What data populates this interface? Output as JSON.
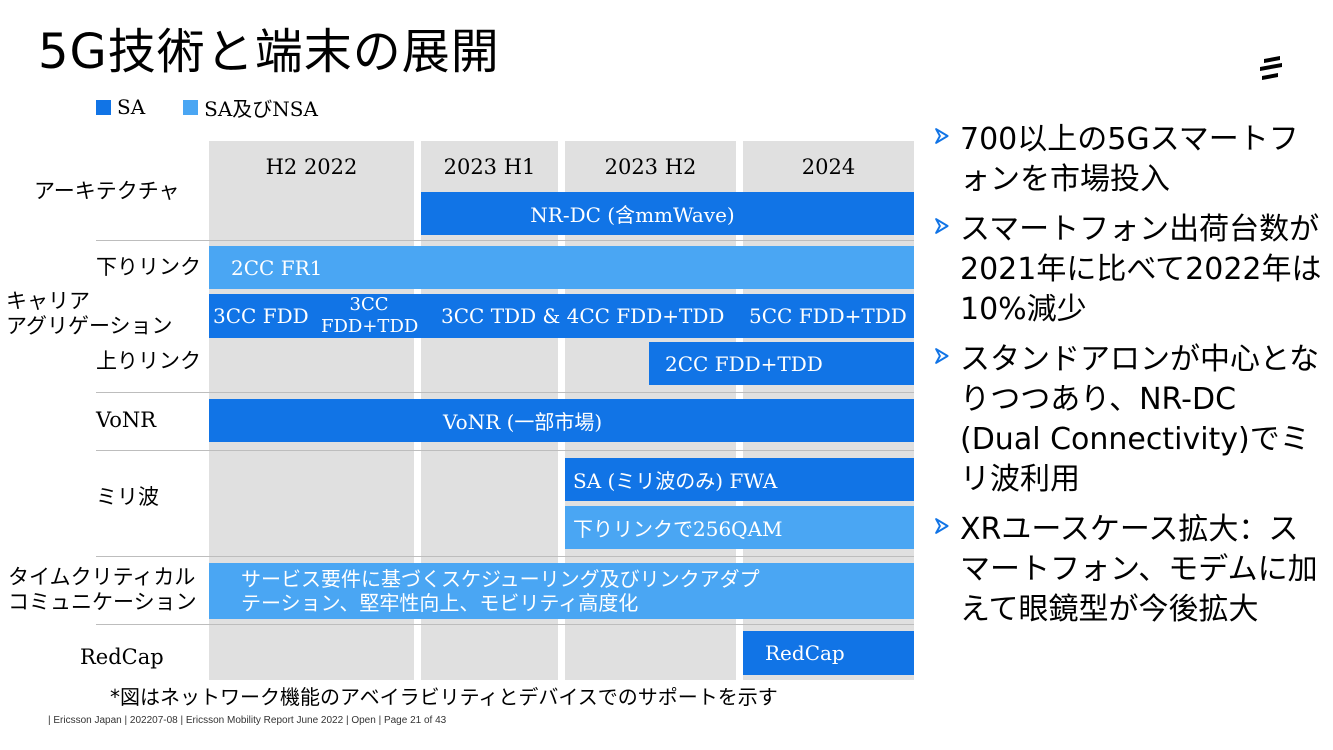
{
  "title": "5G技術と端末の展開",
  "legend": [
    {
      "label": "SA",
      "color": "#1174e6"
    },
    {
      "label": "SA及びNSA",
      "color": "#4aa6f3"
    }
  ],
  "columns": [
    "H2 2022",
    "2023 H1",
    "2023 H2",
    "2024"
  ],
  "rows": {
    "architecture": "アーキテクチャ",
    "carrier_aggregation": [
      "キャリア",
      "アグリゲーション"
    ],
    "downlink": "下りリンク",
    "uplink": "上りリンク",
    "vonr": "VoNR",
    "mmwave": "ミリ波",
    "time_critical": [
      "タイムクリティカル",
      "コミュニケーション"
    ],
    "redcap": "RedCap"
  },
  "bars": {
    "nrdc": "NR-DC (含mmWave)",
    "dl_2cc": "2CC FR1",
    "ca_3cc_fdd": "3CC FDD",
    "ca_3cc_fdd_tdd_a": "3CC",
    "ca_3cc_fdd_tdd_b": "FDD+TDD",
    "ca_3cc_tdd_4cc": "3CC TDD & 4CC FDD+TDD",
    "ca_5cc": "5CC FDD+TDD",
    "ul_2cc": "2CC FDD+TDD",
    "vonr": "VoNR (一部市場)",
    "sa_fwa": "SA (ミリ波のみ) FWA",
    "dl_256qam": "下りリンクで256QAM",
    "tc_line1": "サービス要件に基づくスケジューリング及びリンクアダプ",
    "tc_line2": "テーション、堅牢性向上、モビリティ高度化",
    "redcap": "RedCap"
  },
  "bullets": [
    "700以上の5Gスマートフォンを市場投入",
    "スマートフォン出荷台数が2021年に比べて2022年は10%減少",
    "スタンドアロンが中心となりつつあり、NR-DC (Dual Connectivity)でミリ波利用",
    "XRユースケース拡大：スマートフォン、モデムに加えて眼鏡型が今後拡大"
  ],
  "footnote": "*図はネットワーク機能のアベイラビリティとデバイスでのサポートを示す",
  "footer": "|  Ericsson Japan  |  202207-08  |  Ericsson Mobility Report June 2022  |  Open  |  Page 21 of 43"
}
